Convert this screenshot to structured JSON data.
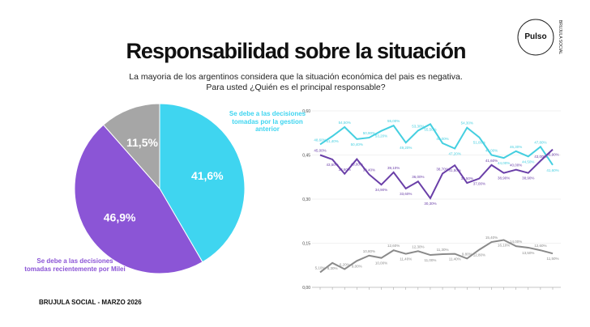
{
  "header": {
    "title": "Responsabilidad sobre la situación",
    "subtitle": "La mayoria de los argentinos considera que la situación económica del pais es negativa. Para usted ¿Quién es el principal responsable?"
  },
  "logo": {
    "name": "Pulso",
    "ring": "BRUJULA SOCIAL"
  },
  "footer": "BRUJULA SOCIAL - MARZO 2026",
  "chart_data": [
    {
      "type": "pie",
      "categories": [
        "Se debe a las decisiones tomadas por la gestion anterior",
        "Se debe a las decisiones tomadas recientemente por Milei",
        null
      ],
      "values": [
        41.6,
        46.9,
        11.5
      ],
      "value_labels": [
        "41,6%",
        "46,9%",
        "11,5%"
      ],
      "colors": [
        "#3fd5f0",
        "#8b55d6",
        "#a6a6a6"
      ]
    },
    {
      "type": "line",
      "categories": [
        null,
        null,
        null,
        null,
        null,
        null,
        null,
        null,
        null,
        null,
        null,
        null,
        null,
        null,
        null,
        null,
        null,
        null,
        null,
        null
      ],
      "ylim": [
        0,
        0.6
      ],
      "yticks": [
        {
          "value": 0,
          "label": "0,00"
        },
        {
          "value": 0.15,
          "label": "0,15"
        },
        {
          "value": 0.3,
          "label": "0,30"
        },
        {
          "value": 0.45,
          "label": "0,45"
        },
        {
          "value": 0.6,
          "label": "0,60"
        }
      ],
      "grid": true,
      "series": [
        {
          "color": "#45cfe0",
          "values": [
            0.486,
            0.514,
            0.545,
            0.504,
            0.509,
            0.532,
            0.55,
            0.492,
            0.533,
            0.555,
            0.49,
            0.472,
            0.543,
            0.51,
            0.45,
            0.44,
            0.463,
            0.445,
            0.478,
            0.416
          ],
          "value_labels": [
            "48,60%",
            "51,40%",
            "54,50%",
            "50,40%",
            "50,90%",
            "53,20%",
            "55,00%",
            "49,20%",
            "53,30%",
            "55,50%",
            "49,00%",
            "47,20%",
            "54,30%",
            "51,00%",
            "45,00%",
            "44,00%",
            "46,30%",
            "44,50%",
            "47,80%",
            "41,60%"
          ]
        },
        {
          "color": "#6a3fa8",
          "values": [
            0.45,
            0.435,
            0.386,
            0.436,
            0.384,
            0.349,
            0.391,
            0.336,
            0.36,
            0.303,
            0.387,
            0.415,
            0.355,
            0.37,
            0.416,
            0.389,
            0.4,
            0.389,
            0.43,
            0.469
          ],
          "value_labels": [
            "45,00%",
            "43,50%",
            "38,60%",
            "43,60%",
            "38,40%",
            "34,90%",
            "39,10%",
            "33,60%",
            "36,00%",
            "30,30%",
            "38,70%",
            "41,50%",
            "35,50%",
            "37,00%",
            "41,60%",
            "38,90%",
            "40,00%",
            "38,90%",
            "43,00%",
            "46,90%"
          ]
        },
        {
          "color": "#8a8a8a",
          "values": [
            0.051,
            0.083,
            0.062,
            0.09,
            0.108,
            0.1,
            0.126,
            0.114,
            0.123,
            0.11,
            0.113,
            0.114,
            0.098,
            0.128,
            0.154,
            0.161,
            0.14,
            0.135,
            0.126,
            0.115
          ],
          "value_labels": [
            "5,10%",
            "8,30%",
            "6,20%",
            "9,00%",
            "10,80%",
            "10,00%",
            "12,60%",
            "11,40%",
            "12,30%",
            "11,00%",
            "11,30%",
            "11,40%",
            "9,80%",
            "12,80%",
            "15,40%",
            "16,10%",
            "14,00%",
            "13,50%",
            "12,60%",
            "11,50%"
          ]
        }
      ]
    }
  ]
}
